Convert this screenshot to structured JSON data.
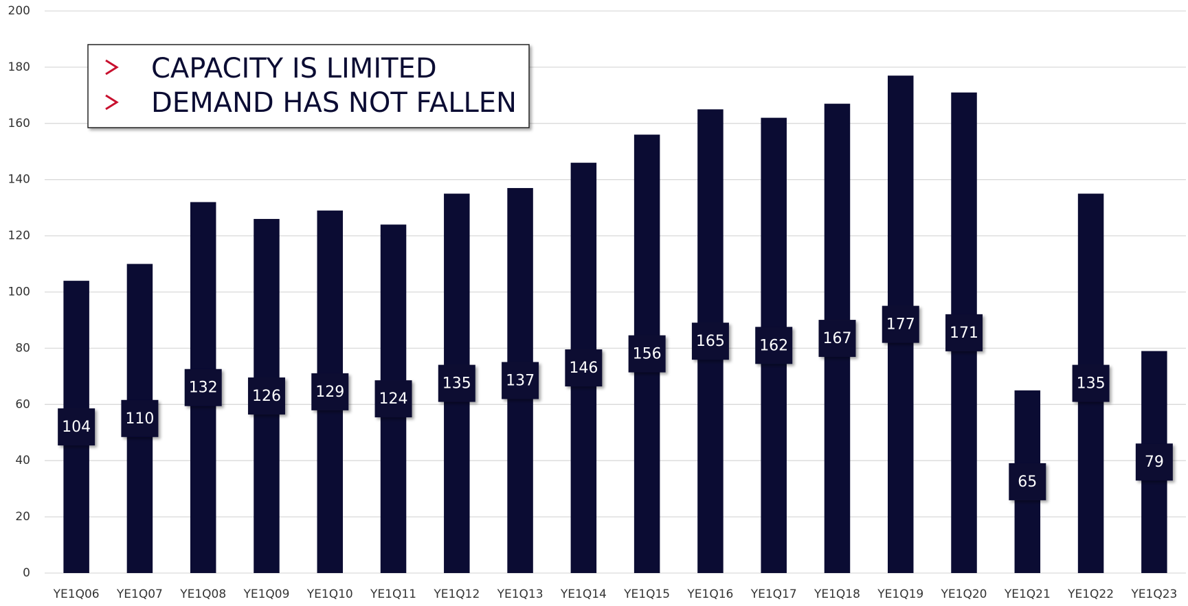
{
  "chart_data": {
    "type": "bar",
    "annotations": [
      "CAPACITY IS LIMITED",
      "DEMAND HAS NOT FALLEN"
    ],
    "categories": [
      "YE1Q06",
      "YE1Q07",
      "YE1Q08",
      "YE1Q09",
      "YE1Q10",
      "YE1Q11",
      "YE1Q12",
      "YE1Q13",
      "YE1Q14",
      "YE1Q15",
      "YE1Q16",
      "YE1Q17",
      "YE1Q18",
      "YE1Q19",
      "YE1Q20",
      "YE1Q21",
      "YE1Q22",
      "YE1Q23"
    ],
    "values": [
      104,
      110,
      132,
      126,
      129,
      124,
      135,
      137,
      146,
      156,
      165,
      162,
      167,
      177,
      171,
      65,
      135,
      79
    ],
    "color": "#0b0c33",
    "ylim": [
      0,
      200
    ],
    "yticks": [
      0,
      20,
      40,
      60,
      80,
      100,
      120,
      140,
      160,
      180,
      200
    ],
    "grid": true
  }
}
